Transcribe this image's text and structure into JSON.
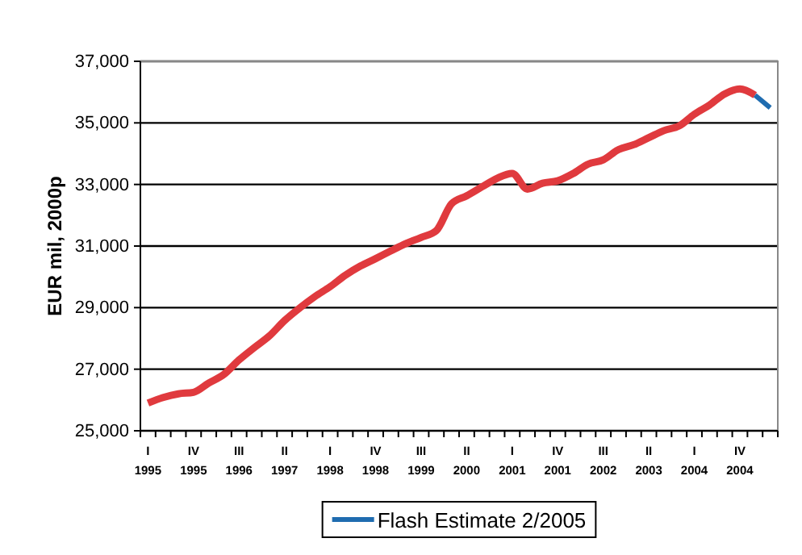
{
  "chart_data": {
    "type": "line",
    "ylabel": "EUR mil, 2000p",
    "categories": [
      "I 1995",
      null,
      null,
      "IV 1995",
      null,
      null,
      "III 1996",
      null,
      null,
      "II 1997",
      null,
      null,
      "I 1998",
      null,
      null,
      "IV 1998",
      null,
      null,
      "III 1999",
      null,
      null,
      "II 2000",
      null,
      null,
      "I 2001",
      null,
      null,
      "IV 2001",
      null,
      null,
      "III 2002",
      null,
      null,
      "II 2003",
      null,
      null,
      "I 2004",
      null,
      null,
      "IV 2004",
      null,
      null
    ],
    "ylim": [
      25000,
      37000
    ],
    "yticks": [
      {
        "value": 25000,
        "label": "25,000"
      },
      {
        "value": 27000,
        "label": "27,000"
      },
      {
        "value": 29000,
        "label": "29,000"
      },
      {
        "value": 31000,
        "label": "31,000"
      },
      {
        "value": 33000,
        "label": "33,000"
      },
      {
        "value": 35000,
        "label": "35,000"
      },
      {
        "value": 37000,
        "label": "37,000"
      }
    ],
    "grid": "y",
    "legend": "bottom",
    "marker": "none",
    "line_style": "solid",
    "series": [
      {
        "color": "#e03a3e",
        "values": [
          25900,
          26080,
          26200,
          26250,
          26550,
          26830,
          27300,
          27700,
          28080,
          28580,
          28990,
          29360,
          29680,
          30050,
          30350,
          30590,
          30840,
          31080,
          31280,
          31500,
          32370,
          32630,
          32920,
          33200,
          33360,
          32850,
          33040,
          33120,
          33350,
          33660,
          33800,
          34130,
          34290,
          34520,
          34750,
          34900,
          35280,
          35580,
          35940,
          36100,
          35900,
          null
        ]
      },
      {
        "name": "Flash Estimate 2/2005",
        "color": "#1f6cb0",
        "values": [
          null,
          null,
          null,
          null,
          null,
          null,
          null,
          null,
          null,
          null,
          null,
          null,
          null,
          null,
          null,
          null,
          null,
          null,
          null,
          null,
          null,
          null,
          null,
          null,
          null,
          null,
          null,
          null,
          null,
          null,
          null,
          null,
          null,
          null,
          null,
          null,
          null,
          null,
          null,
          null,
          35900,
          35490
        ]
      }
    ]
  }
}
